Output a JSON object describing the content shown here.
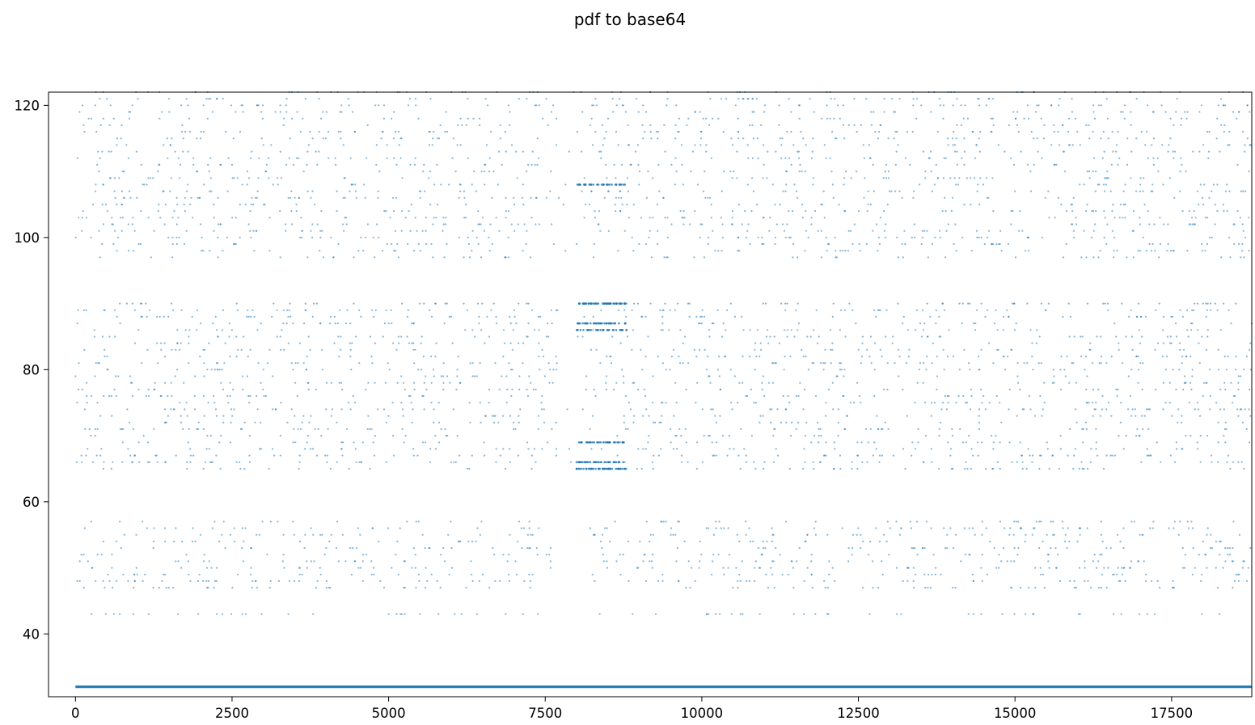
{
  "chart_data": {
    "type": "scatter",
    "title": "pdf to base64",
    "xlabel": "",
    "ylabel": "",
    "xlim": [
      -430,
      18780
    ],
    "ylim": [
      30.5,
      122
    ],
    "grid": false,
    "legend": "none",
    "marker_color": "#1f77b4",
    "x_ticks": [
      0,
      2500,
      5000,
      7500,
      10000,
      12500,
      15000,
      17500
    ],
    "x_tick_labels": [
      "0",
      "2500",
      "5000",
      "7500",
      "10000",
      "12500",
      "15000",
      "17500"
    ],
    "y_ticks": [
      40,
      60,
      80,
      100,
      120
    ],
    "y_tick_labels": [
      "40",
      "60",
      "80",
      "100",
      "120"
    ],
    "series": [
      {
        "description_of_values": "ASCII byte codes of base64 characters at each character index",
        "n_points": 18780,
        "constant_line_value": 32,
        "value_bands": [
          {
            "from": 43,
            "to": 43
          },
          {
            "from": 47,
            "to": 57
          },
          {
            "from": 65,
            "to": 90
          },
          {
            "from": 97,
            "to": 122
          }
        ],
        "dense_cluster": {
          "x_range": [
            8000,
            8800
          ],
          "values": [
            65,
            66,
            69,
            86,
            87,
            90,
            108
          ]
        },
        "sparse_region": {
          "x_range": [
            7700,
            8200
          ]
        }
      }
    ]
  }
}
